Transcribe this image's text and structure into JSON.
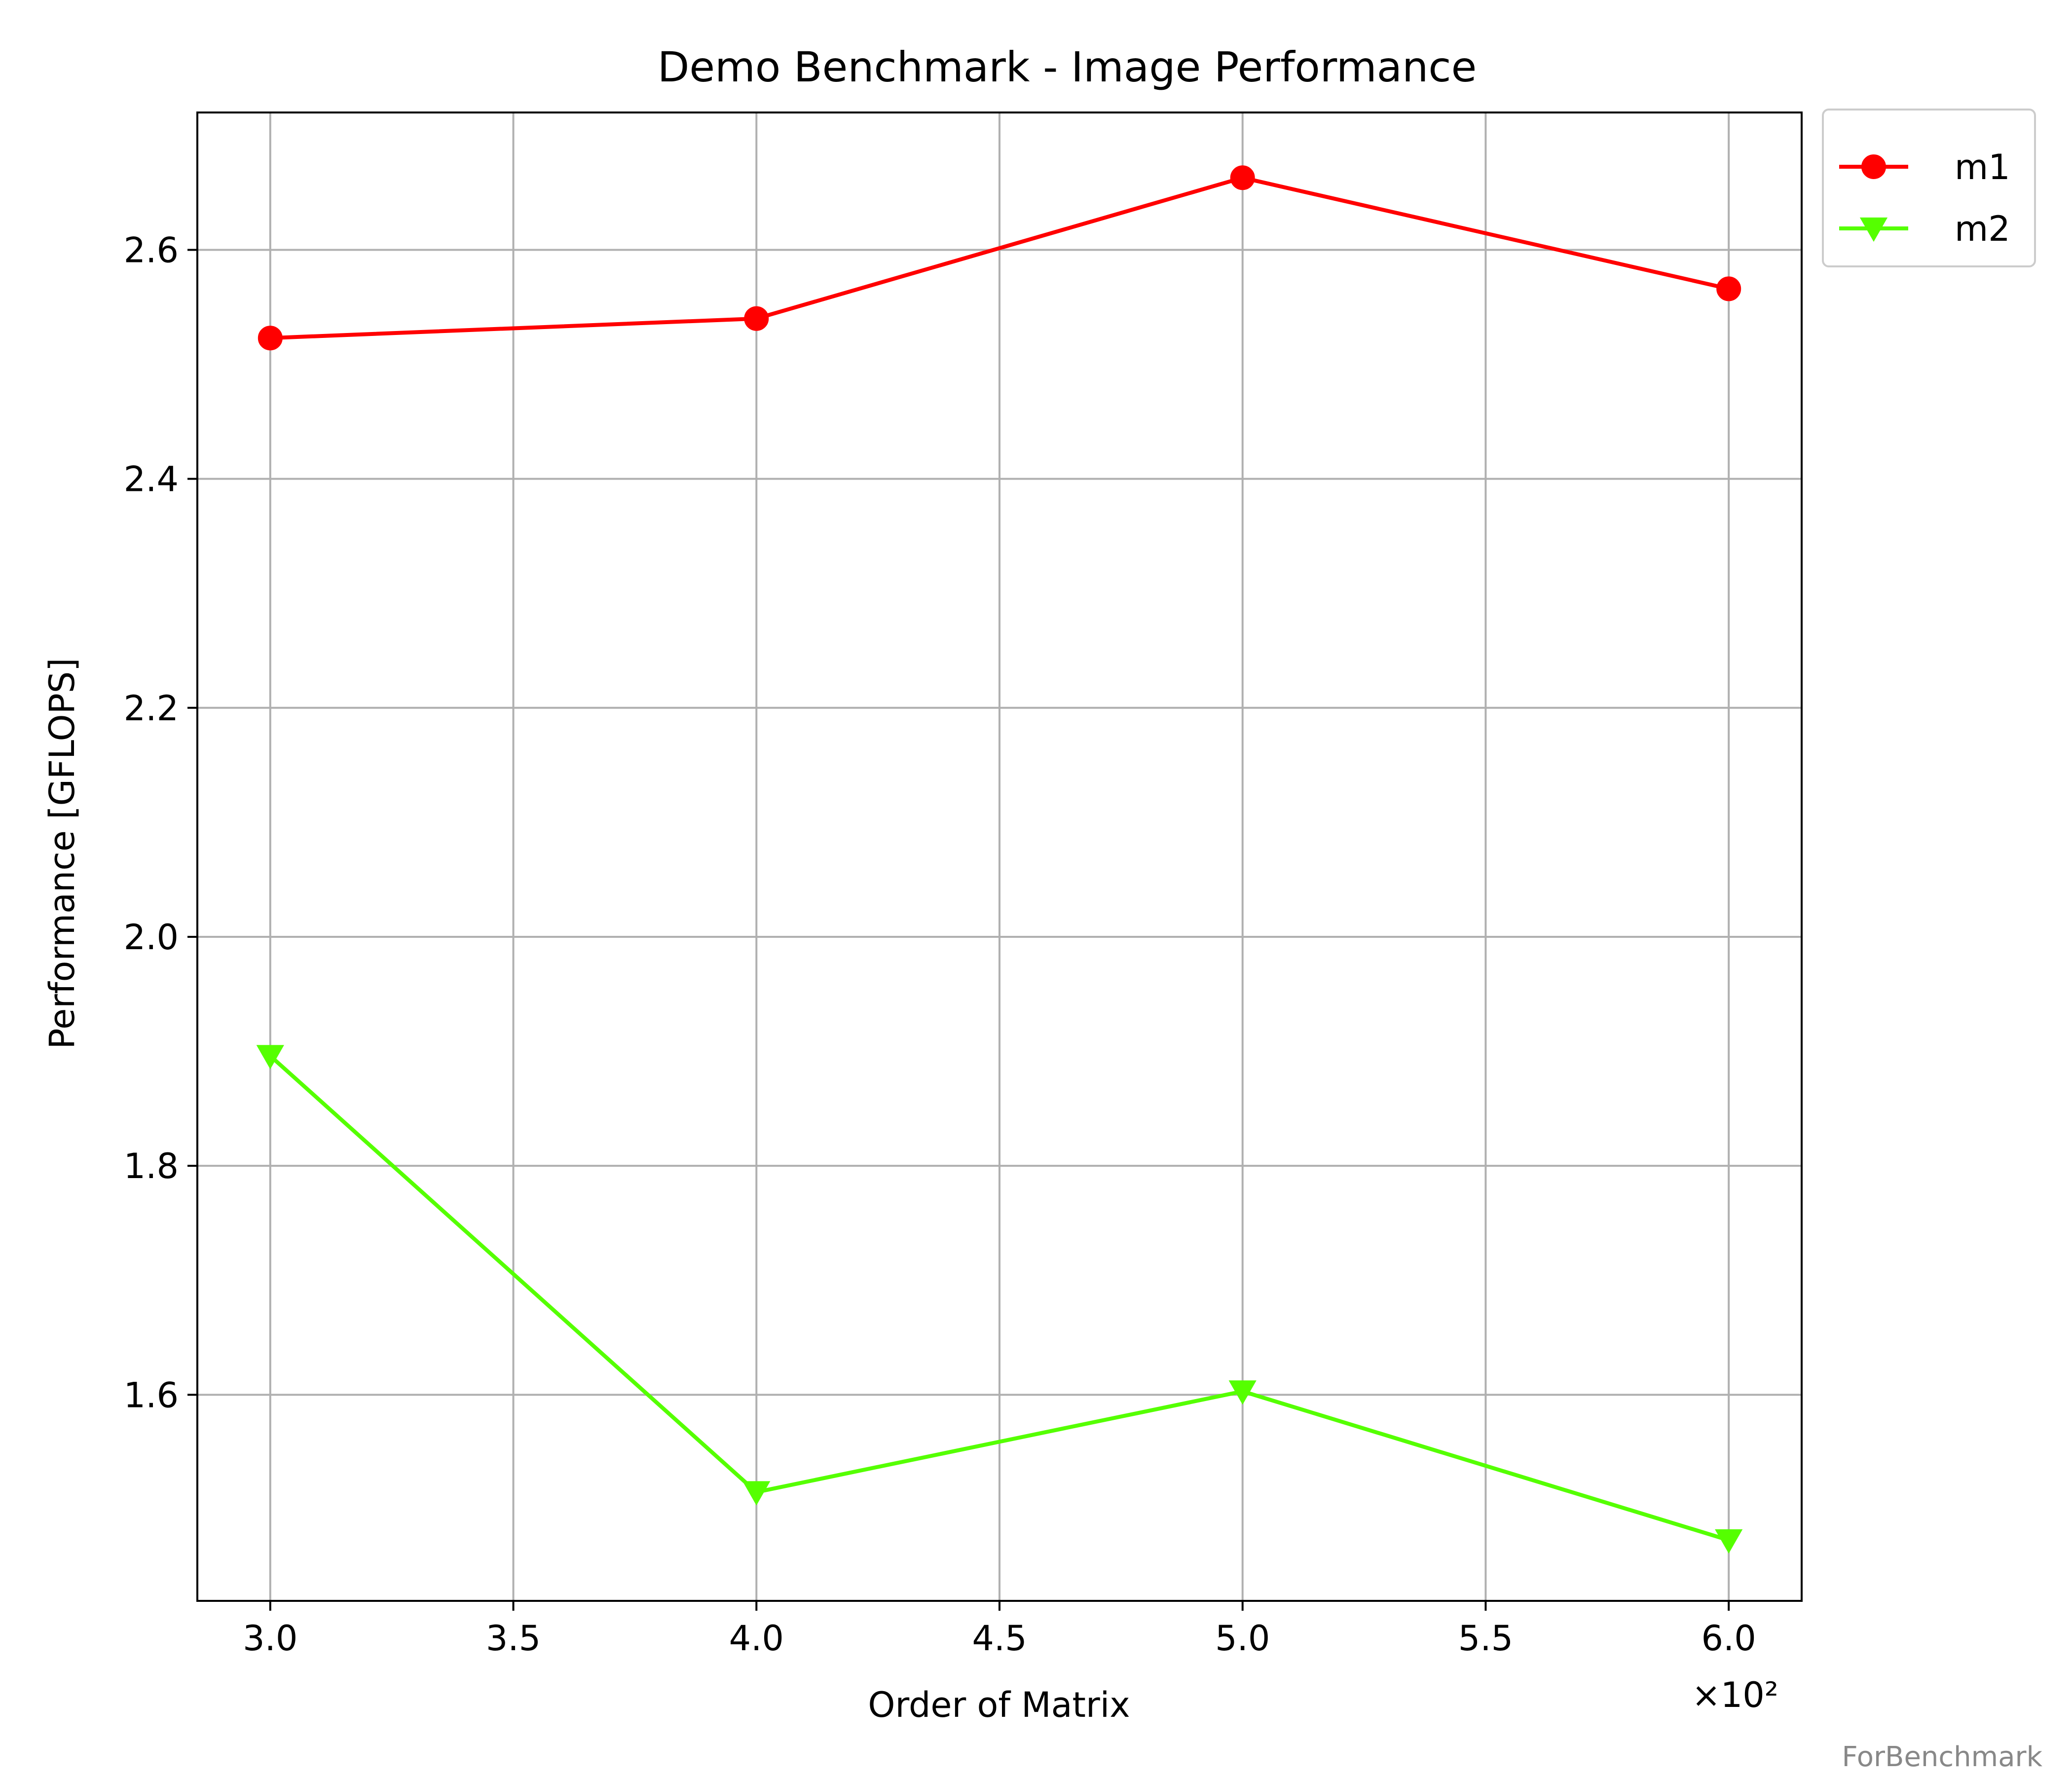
{
  "chart_data": {
    "type": "line",
    "title": "Demo Benchmark - Image Performance",
    "xlabel": "Order of Matrix",
    "ylabel": "Performance [GFLOPS]",
    "x_offset_text": "×10²",
    "xlim": [
      2.85,
      6.15
    ],
    "ylim": [
      1.42,
      2.72
    ],
    "x_ticks": [
      3.0,
      3.5,
      4.0,
      4.5,
      5.0,
      5.5,
      6.0
    ],
    "x_tick_labels": [
      "3.0",
      "3.5",
      "4.0",
      "4.5",
      "5.0",
      "5.5",
      "6.0"
    ],
    "y_ticks": [
      1.6,
      1.8,
      2.0,
      2.2,
      2.4,
      2.6
    ],
    "y_tick_labels": [
      "1.6",
      "1.8",
      "2.0",
      "2.2",
      "2.4",
      "2.6"
    ],
    "grid": true,
    "legend_position": "outside-top-right",
    "x": [
      3.0,
      4.0,
      5.0,
      6.0
    ],
    "series": [
      {
        "name": "m1",
        "values": [
          2.523,
          2.54,
          2.663,
          2.566
        ],
        "color": "#ff0000",
        "marker": "circle"
      },
      {
        "name": "m2",
        "values": [
          1.896,
          1.515,
          1.603,
          1.473
        ],
        "color": "#55ff00",
        "marker": "triangle-down"
      }
    ]
  },
  "watermark": "ForBenchmark"
}
